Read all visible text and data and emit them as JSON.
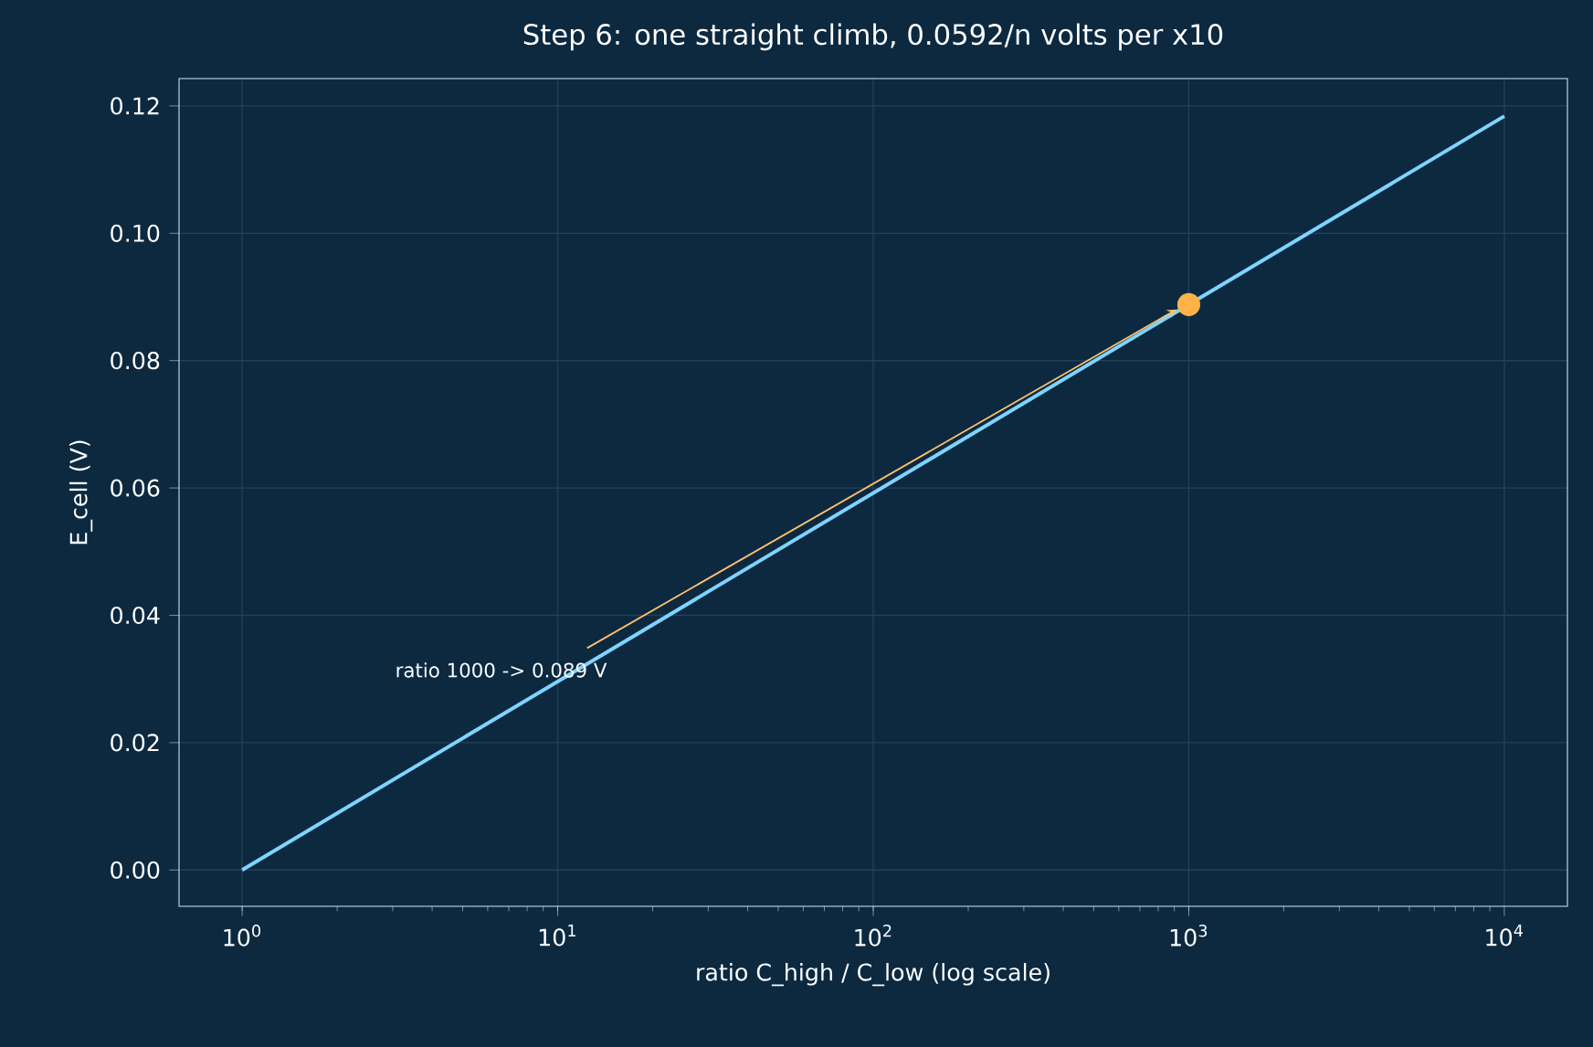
{
  "chart_data": {
    "type": "line",
    "title": "Step 6: one straight climb, 0.0592/n volts per x10",
    "xlabel": "ratio  C_high / C_low  (log scale)",
    "ylabel": "E_cell (V)",
    "log": "x",
    "grid": true,
    "xlim": [
      0.631,
      15849
    ],
    "ylim": [
      -0.0057,
      0.1243
    ],
    "xticks": [
      {
        "value": 1,
        "label": "10$^{0}$"
      },
      {
        "value": 10,
        "label": "10$^{1}$"
      },
      {
        "value": 100,
        "label": "10$^{2}$"
      },
      {
        "value": 1000,
        "label": "10$^{3}$"
      },
      {
        "value": 10000,
        "label": "10$^{4}$"
      }
    ],
    "yticks": [
      {
        "value": 0,
        "label": "0.00"
      },
      {
        "value": 0.02,
        "label": "0.02"
      },
      {
        "value": 0.04,
        "label": "0.04"
      },
      {
        "value": 0.06,
        "label": "0.06"
      },
      {
        "value": 0.08,
        "label": "0.08"
      },
      {
        "value": 0.1,
        "label": "0.10"
      },
      {
        "value": 0.12,
        "label": "0.12"
      }
    ],
    "series": [
      {
        "color": "#7fd4ff",
        "x": [
          1,
          10000
        ],
        "values": [
          0,
          0.1184
        ],
        "marker": "none"
      },
      {
        "type": "scatter",
        "color": "#ffb347",
        "x": [
          1000
        ],
        "values": [
          0.0888
        ],
        "marker": "circle"
      }
    ],
    "annotations": [
      "ratio 1000 -> 0.089 V"
    ]
  }
}
